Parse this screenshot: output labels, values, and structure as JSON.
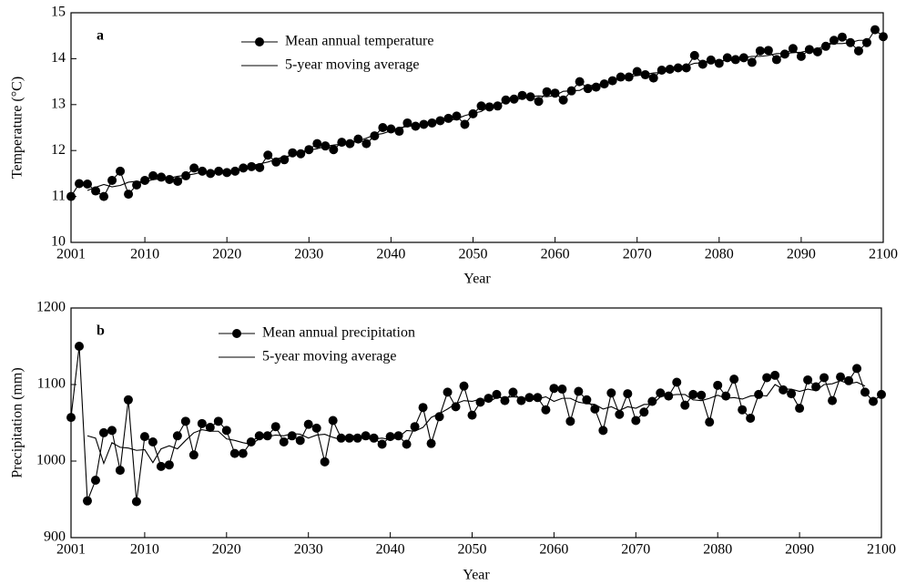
{
  "chart_data": [
    {
      "type": "line",
      "panel_label": "a",
      "y_label": "Temperature (°C)",
      "x_label": "Year",
      "legend": "upper-left",
      "x": [
        2001,
        2002,
        2003,
        2004,
        2005,
        2006,
        2007,
        2008,
        2009,
        2010,
        2011,
        2012,
        2013,
        2014,
        2015,
        2016,
        2017,
        2018,
        2019,
        2020,
        2021,
        2022,
        2023,
        2024,
        2025,
        2026,
        2027,
        2028,
        2029,
        2030,
        2031,
        2032,
        2033,
        2034,
        2035,
        2036,
        2037,
        2038,
        2039,
        2040,
        2041,
        2042,
        2043,
        2044,
        2045,
        2046,
        2047,
        2048,
        2049,
        2050,
        2051,
        2052,
        2053,
        2054,
        2055,
        2056,
        2057,
        2058,
        2059,
        2060,
        2061,
        2062,
        2063,
        2064,
        2065,
        2066,
        2067,
        2068,
        2069,
        2070,
        2071,
        2072,
        2073,
        2074,
        2075,
        2076,
        2077,
        2078,
        2079,
        2080,
        2081,
        2082,
        2083,
        2084,
        2085,
        2086,
        2087,
        2088,
        2089,
        2090,
        2091,
        2092,
        2093,
        2094,
        2095,
        2096,
        2097,
        2098,
        2099,
        2100
      ],
      "xlim": [
        2001,
        2100
      ],
      "xticks": [
        2001,
        2010,
        2020,
        2030,
        2040,
        2050,
        2060,
        2070,
        2080,
        2090,
        2100
      ],
      "ylim": [
        10,
        15
      ],
      "yticks": [
        10,
        11,
        12,
        13,
        14,
        15
      ],
      "series": [
        {
          "name": "Mean annual temperature",
          "color": "#000000",
          "marker": "circle",
          "values": [
            11.0,
            11.28,
            11.27,
            11.12,
            11.0,
            11.35,
            11.55,
            11.05,
            11.25,
            11.35,
            11.45,
            11.42,
            11.37,
            11.33,
            11.45,
            11.62,
            11.55,
            11.5,
            11.55,
            11.52,
            11.55,
            11.62,
            11.65,
            11.63,
            11.9,
            11.75,
            11.8,
            11.95,
            11.93,
            12.02,
            12.15,
            12.1,
            12.02,
            12.18,
            12.15,
            12.25,
            12.15,
            12.32,
            12.5,
            12.47,
            12.42,
            12.6,
            12.53,
            12.57,
            12.6,
            12.65,
            12.7,
            12.75,
            12.57,
            12.8,
            12.97,
            12.95,
            12.97,
            13.1,
            13.12,
            13.2,
            13.17,
            13.07,
            13.28,
            13.25,
            13.1,
            13.3,
            13.5,
            13.35,
            13.38,
            13.45,
            13.52,
            13.6,
            13.6,
            13.72,
            13.65,
            13.58,
            13.75,
            13.77,
            13.8,
            13.8,
            14.07,
            13.88,
            13.97,
            13.9,
            14.02,
            13.98,
            14.02,
            13.92,
            14.17,
            14.18,
            13.98,
            14.1,
            14.22,
            14.05,
            14.2,
            14.15,
            14.27,
            14.4,
            14.47,
            14.35,
            14.17,
            14.35,
            14.63,
            14.48
          ]
        },
        {
          "name": "5-year moving average",
          "color": "#000000",
          "values": [
            null,
            null,
            11.13,
            11.2,
            11.26,
            11.21,
            11.24,
            11.31,
            11.33,
            11.31,
            11.37,
            11.38,
            11.4,
            11.44,
            11.46,
            11.49,
            11.53,
            11.55,
            11.55,
            11.55,
            11.58,
            11.59,
            11.67,
            11.71,
            11.75,
            11.81,
            11.87,
            11.89,
            11.97,
            12.01,
            12.04,
            12.09,
            12.12,
            12.14,
            12.15,
            12.21,
            12.27,
            12.34,
            12.37,
            12.43,
            12.5,
            12.52,
            12.55,
            12.59,
            12.61,
            12.65,
            12.65,
            12.69,
            12.76,
            12.81,
            12.85,
            12.96,
            13.0,
            13.07,
            13.11,
            13.13,
            13.17,
            13.19,
            13.17,
            13.2,
            13.29,
            13.3,
            13.31,
            13.4,
            13.44,
            13.46,
            13.51,
            13.58,
            13.62,
            13.63,
            13.66,
            13.69,
            13.7,
            13.74,
            13.84,
            13.84,
            13.9,
            13.91,
            13.97,
            13.95,
            13.96,
            13.97,
            14.02,
            14.05,
            14.05,
            14.07,
            14.11,
            14.11,
            14.13,
            14.14,
            14.18,
            14.21,
            14.3,
            14.33,
            14.33,
            14.35,
            14.4,
            14.4,
            null,
            null
          ]
        }
      ]
    },
    {
      "type": "line",
      "panel_label": "b",
      "y_label": "Precipitation (mm)",
      "x_label": "Year",
      "legend": "upper-left",
      "x": [
        2001,
        2002,
        2003,
        2004,
        2005,
        2006,
        2007,
        2008,
        2009,
        2010,
        2011,
        2012,
        2013,
        2014,
        2015,
        2016,
        2017,
        2018,
        2019,
        2020,
        2021,
        2022,
        2023,
        2024,
        2025,
        2026,
        2027,
        2028,
        2029,
        2030,
        2031,
        2032,
        2033,
        2034,
        2035,
        2036,
        2037,
        2038,
        2039,
        2040,
        2041,
        2042,
        2043,
        2044,
        2045,
        2046,
        2047,
        2048,
        2049,
        2050,
        2051,
        2052,
        2053,
        2054,
        2055,
        2056,
        2057,
        2058,
        2059,
        2060,
        2061,
        2062,
        2063,
        2064,
        2065,
        2066,
        2067,
        2068,
        2069,
        2070,
        2071,
        2072,
        2073,
        2074,
        2075,
        2076,
        2077,
        2078,
        2079,
        2080,
        2081,
        2082,
        2083,
        2084,
        2085,
        2086,
        2087,
        2088,
        2089,
        2090,
        2091,
        2092,
        2093,
        2094,
        2095,
        2096,
        2097,
        2098,
        2099,
        2100
      ],
      "xlim": [
        2001,
        2100
      ],
      "xticks": [
        2001,
        2010,
        2020,
        2030,
        2040,
        2050,
        2060,
        2070,
        2080,
        2090,
        2100
      ],
      "ylim": [
        900,
        1200
      ],
      "yticks": [
        900,
        1000,
        1100,
        1200
      ],
      "series": [
        {
          "name": "Mean annual precipitation",
          "color": "#000000",
          "marker": "circle",
          "values": [
            1057,
            1150,
            948,
            975,
            1037,
            1040,
            988,
            1080,
            947,
            1032,
            1025,
            993,
            995,
            1033,
            1052,
            1008,
            1049,
            1044,
            1052,
            1040,
            1010,
            1010,
            1025,
            1033,
            1033,
            1045,
            1025,
            1033,
            1027,
            1048,
            1043,
            999,
            1053,
            1030,
            1030,
            1030,
            1033,
            1030,
            1022,
            1032,
            1033,
            1022,
            1045,
            1070,
            1023,
            1058,
            1090,
            1071,
            1098,
            1060,
            1077,
            1082,
            1087,
            1079,
            1090,
            1079,
            1083,
            1083,
            1067,
            1095,
            1094,
            1052,
            1091,
            1080,
            1068,
            1040,
            1089,
            1061,
            1088,
            1053,
            1064,
            1078,
            1089,
            1085,
            1103,
            1073,
            1087,
            1086,
            1051,
            1099,
            1085,
            1107,
            1067,
            1056,
            1087,
            1109,
            1112,
            1093,
            1088,
            1069,
            1106,
            1097,
            1109,
            1079,
            1110,
            1105,
            1121,
            1090,
            1078,
            1087
          ]
        },
        {
          "name": "5-year moving average",
          "color": "#000000",
          "values": [
            null,
            null,
            1033,
            1030,
            997,
            1024,
            1018,
            1017,
            1014,
            1015,
            998,
            1016,
            1020,
            1016,
            1027,
            1037,
            1041,
            1039,
            1039,
            1029,
            1027,
            1024,
            1022,
            1029,
            1032,
            1034,
            1033,
            1036,
            1035,
            1030,
            1034,
            1035,
            1031,
            1028,
            1035,
            1031,
            1029,
            1029,
            1030,
            1028,
            1031,
            1040,
            1039,
            1044,
            1057,
            1062,
            1068,
            1075,
            1079,
            1078,
            1081,
            1077,
            1083,
            1083,
            1084,
            1083,
            1080,
            1081,
            1084,
            1078,
            1082,
            1082,
            1077,
            1075,
            1074,
            1068,
            1071,
            1066,
            1071,
            1069,
            1074,
            1074,
            1084,
            1086,
            1087,
            1087,
            1080,
            1079,
            1082,
            1086,
            1082,
            1083,
            1081,
            1085,
            1086,
            1085,
            1100,
            1094,
            1094,
            1091,
            1094,
            1092,
            1100,
            1101,
            1105,
            1101,
            1103,
            1098,
            null,
            null
          ]
        }
      ]
    }
  ]
}
